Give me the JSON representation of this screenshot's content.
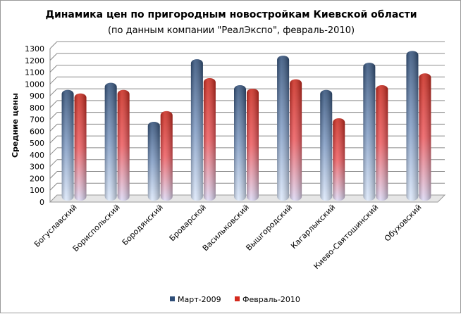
{
  "chart_data": {
    "type": "bar",
    "title": "Динамика цен по пригородным новостройкам  Киевской области",
    "subtitle": "(по данным компании \"РеалЭкспо\", февраль-2010)",
    "xlabel": "",
    "ylabel": "Средние цены",
    "ylim": [
      0,
      1300
    ],
    "yticks": [
      0,
      100,
      200,
      300,
      400,
      500,
      600,
      700,
      800,
      900,
      1000,
      1100,
      1200,
      1300
    ],
    "grid": true,
    "legend": "bottom",
    "categories": [
      "Богуславский",
      "Бориспольский",
      "Бородянский",
      "Броварской",
      "Васильковский",
      "Вышгородский",
      "Кагарлыкский",
      "Киево-Святошинский",
      "Обуховский"
    ],
    "series": [
      {
        "name": "Март-2009",
        "color": "#2f4e78",
        "values": [
          920,
          980,
          650,
          1180,
          960,
          1210,
          920,
          1150,
          1250
        ]
      },
      {
        "name": "Февраль-2010",
        "color": "#d42a1e",
        "values": [
          890,
          920,
          740,
          1020,
          930,
          1010,
          680,
          960,
          1060
        ]
      }
    ]
  }
}
